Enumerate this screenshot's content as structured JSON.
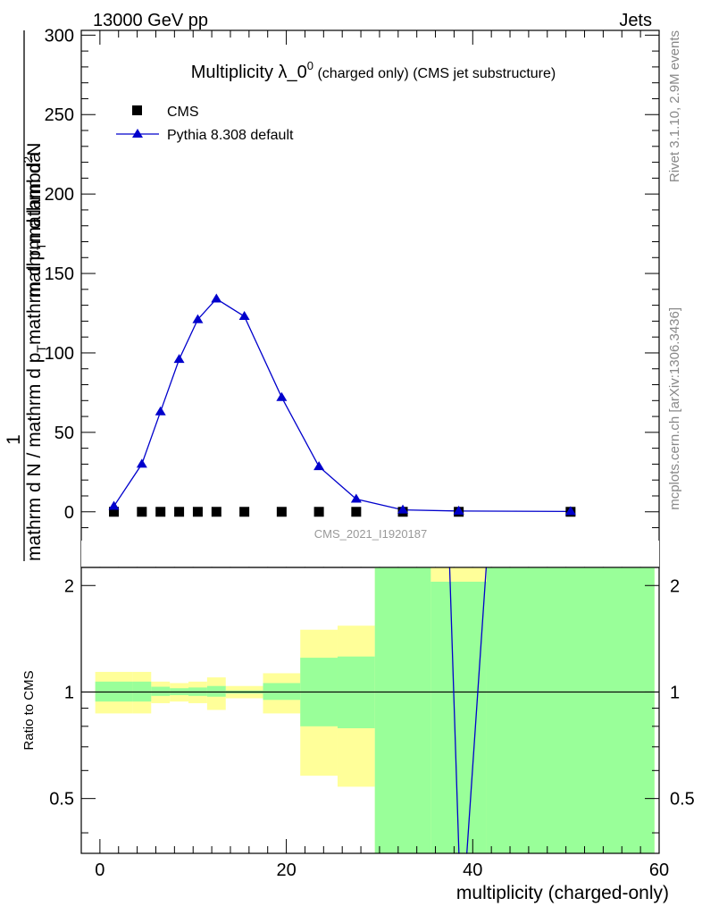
{
  "header": {
    "left": "13000 GeV pp",
    "right": "Jets"
  },
  "side_labels": {
    "rivet": "Rivet 3.1.10,  2.9M events",
    "mcplots": "mcplots.cern.ch [arXiv:1306.3436]"
  },
  "chart_data": [
    {
      "type": "scatter",
      "panel": "main",
      "title_main": "Multiplicity λ_0",
      "title_sup": "0",
      "title_suffix": " (charged only) (CMS jet substructure)",
      "analysis_label": "CMS_2021_I1920187",
      "ylabel": {
        "prefix": "1",
        "denominator": "mathrm d N / mathrm d p",
        "sub1": "T",
        "mid": "mathrm d p",
        "sub2": "T",
        "numerator": "mathrm d",
        "sup": "2",
        "numerator_end": "N",
        "tail": "mathrm d lambda"
      },
      "ylim": [
        -35,
        303
      ],
      "yticks": [
        0,
        50,
        100,
        150,
        200,
        250,
        300
      ],
      "xlim": [
        -2,
        60
      ],
      "legend_position": "top-left",
      "series": [
        {
          "name": "CMS",
          "color": "#000000",
          "marker": "square",
          "x": [
            1.5,
            4.5,
            6.5,
            8.5,
            10.5,
            12.5,
            15.5,
            19.5,
            23.5,
            27.5,
            32.5,
            38.5,
            50.5
          ],
          "y": [
            0,
            0,
            0,
            0,
            0,
            0,
            0,
            0,
            0,
            0,
            0,
            0,
            0
          ]
        },
        {
          "name": "Pythia 8.308 default",
          "color": "#0000cc",
          "marker": "triangle",
          "x": [
            1.5,
            4.5,
            6.5,
            8.5,
            10.5,
            12.5,
            15.5,
            19.5,
            23.5,
            27.5,
            32.5,
            38.5,
            50.5
          ],
          "y": [
            3.5,
            30,
            63,
            96,
            121,
            134,
            123,
            72,
            28.5,
            8,
            1.2,
            0.5,
            0.2
          ]
        }
      ]
    },
    {
      "type": "area",
      "panel": "ratio",
      "ylabel": "Ratio to CMS",
      "xlabel": "multiplicity (charged-only)",
      "xlim": [
        -2,
        60
      ],
      "ylim": [
        0.35,
        2.25
      ],
      "xticks": [
        0,
        20,
        40,
        60
      ],
      "yticks": [
        0.5,
        1,
        2
      ],
      "band_colors": {
        "total": "#ffff99",
        "stat": "#99ff99",
        "line": "#0000cc"
      },
      "bins": [
        {
          "xlo": -0.5,
          "xhi": 3.5,
          "stat": [
            0.94,
            1.07
          ],
          "total": [
            0.87,
            1.14
          ]
        },
        {
          "xlo": 3.5,
          "xhi": 5.5,
          "stat": [
            0.94,
            1.07
          ],
          "total": [
            0.87,
            1.14
          ]
        },
        {
          "xlo": 5.5,
          "xhi": 7.5,
          "stat": [
            0.975,
            1.035
          ],
          "total": [
            0.93,
            1.07
          ]
        },
        {
          "xlo": 7.5,
          "xhi": 9.5,
          "stat": [
            0.98,
            1.025
          ],
          "total": [
            0.94,
            1.06
          ]
        },
        {
          "xlo": 9.5,
          "xhi": 11.5,
          "stat": [
            0.975,
            1.03
          ],
          "total": [
            0.93,
            1.07
          ]
        },
        {
          "xlo": 11.5,
          "xhi": 13.5,
          "stat": [
            0.97,
            1.04
          ],
          "total": [
            0.89,
            1.1
          ]
        },
        {
          "xlo": 13.5,
          "xhi": 17.5,
          "stat": [
            0.99,
            1.01
          ],
          "total": [
            0.96,
            1.04
          ]
        },
        {
          "xlo": 17.5,
          "xhi": 21.5,
          "stat": [
            0.95,
            1.06
          ],
          "total": [
            0.87,
            1.13
          ]
        },
        {
          "xlo": 21.5,
          "xhi": 25.5,
          "stat": [
            0.8,
            1.25
          ],
          "total": [
            0.58,
            1.5
          ]
        },
        {
          "xlo": 25.5,
          "xhi": 29.5,
          "stat": [
            0.79,
            1.26
          ],
          "total": [
            0.54,
            1.54
          ]
        },
        {
          "xlo": 29.5,
          "xhi": 35.5,
          "stat": [
            0.35,
            2.25
          ],
          "total": [
            0.35,
            2.25
          ]
        },
        {
          "xlo": 35.5,
          "xhi": 41.5,
          "stat": [
            0.35,
            2.05
          ],
          "total": [
            0.35,
            2.25
          ]
        },
        {
          "xlo": 41.5,
          "xhi": 59.5,
          "stat": [
            0.35,
            2.25
          ],
          "total": [
            0.35,
            2.25
          ]
        }
      ],
      "mc_ratio": {
        "name": "Pythia 8.308 default",
        "x": [
          37.5,
          38.6,
          39.2,
          41.5
        ],
        "y": [
          2.35,
          0.3,
          0.3,
          2.35
        ]
      }
    }
  ]
}
